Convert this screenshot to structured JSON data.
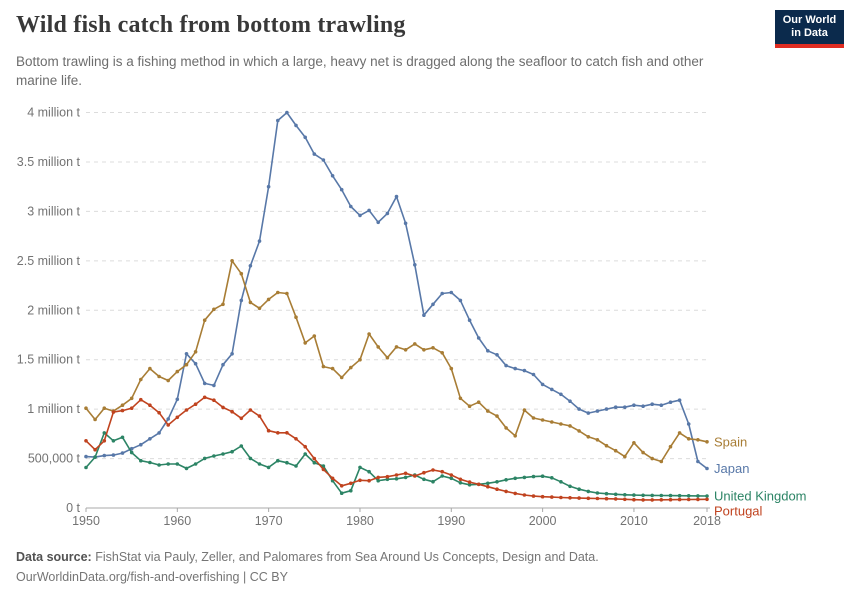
{
  "header": {
    "title": "Wild fish catch from bottom trawling",
    "subtitle": "Bottom trawling is a fishing method in which a large, heavy net is dragged along the seafloor to catch fish and other marine life."
  },
  "logo": {
    "line1": "Our World",
    "line2": "in Data",
    "bg_color": "#0b2a4c",
    "accent_color": "#e02c21"
  },
  "chart_data": {
    "type": "line",
    "title": "Wild fish catch from bottom trawling",
    "xlabel": "",
    "ylabel": "",
    "unit": "t",
    "grid": true,
    "legend_position": "right-end-labels",
    "x_ticks": [
      1950,
      1960,
      1970,
      1980,
      1990,
      2000,
      2010,
      2018
    ],
    "y_ticks": [
      {
        "value": 0,
        "label": "0 t"
      },
      {
        "value": 500000,
        "label": "500,000 t"
      },
      {
        "value": 1000000,
        "label": "1 million t"
      },
      {
        "value": 1500000,
        "label": "1.5 million t"
      },
      {
        "value": 2000000,
        "label": "2 million t"
      },
      {
        "value": 2500000,
        "label": "2.5 million t"
      },
      {
        "value": 3000000,
        "label": "3 million t"
      },
      {
        "value": 3500000,
        "label": "3.5 million t"
      },
      {
        "value": 4000000,
        "label": "4 million t"
      }
    ],
    "x_range": [
      1950,
      2018
    ],
    "y_range": [
      0,
      4000000
    ],
    "years": [
      1950,
      1951,
      1952,
      1953,
      1954,
      1955,
      1956,
      1957,
      1958,
      1959,
      1960,
      1961,
      1962,
      1963,
      1964,
      1965,
      1966,
      1967,
      1968,
      1969,
      1970,
      1971,
      1972,
      1973,
      1974,
      1975,
      1976,
      1977,
      1978,
      1979,
      1980,
      1981,
      1982,
      1983,
      1984,
      1985,
      1986,
      1987,
      1988,
      1989,
      1990,
      1991,
      1992,
      1993,
      1994,
      1995,
      1996,
      1997,
      1998,
      1999,
      2000,
      2001,
      2002,
      2003,
      2004,
      2005,
      2006,
      2007,
      2008,
      2009,
      2010,
      2011,
      2012,
      2013,
      2014,
      2015,
      2016,
      2017,
      2018
    ],
    "series": [
      {
        "name": "Japan",
        "color": "#5878a8",
        "values": [
          520000,
          515000,
          530000,
          535000,
          555000,
          600000,
          640000,
          700000,
          760000,
          900000,
          1100000,
          1560000,
          1460000,
          1260000,
          1240000,
          1450000,
          1560000,
          2100000,
          2450000,
          2700000,
          3250000,
          3920000,
          4000000,
          3870000,
          3750000,
          3580000,
          3520000,
          3360000,
          3220000,
          3050000,
          2960000,
          3010000,
          2890000,
          2980000,
          3150000,
          2880000,
          2460000,
          1950000,
          2060000,
          2170000,
          2180000,
          2100000,
          1900000,
          1720000,
          1590000,
          1550000,
          1440000,
          1410000,
          1390000,
          1350000,
          1250000,
          1200000,
          1150000,
          1080000,
          1000000,
          960000,
          980000,
          1000000,
          1020000,
          1020000,
          1040000,
          1030000,
          1050000,
          1040000,
          1070000,
          1090000,
          850000,
          470000,
          400000
        ]
      },
      {
        "name": "Spain",
        "color": "#a87d35",
        "values": [
          1010000,
          895000,
          1010000,
          980000,
          1040000,
          1110000,
          1300000,
          1410000,
          1330000,
          1290000,
          1380000,
          1450000,
          1580000,
          1900000,
          2010000,
          2060000,
          2500000,
          2370000,
          2080000,
          2020000,
          2110000,
          2180000,
          2170000,
          1930000,
          1670000,
          1740000,
          1430000,
          1410000,
          1320000,
          1420000,
          1500000,
          1760000,
          1630000,
          1520000,
          1630000,
          1600000,
          1660000,
          1600000,
          1620000,
          1570000,
          1410000,
          1110000,
          1030000,
          1070000,
          980000,
          930000,
          810000,
          730000,
          990000,
          910000,
          890000,
          870000,
          850000,
          830000,
          780000,
          720000,
          690000,
          630000,
          580000,
          520000,
          660000,
          560000,
          500000,
          470000,
          620000,
          760000,
          700000,
          690000,
          670000
        ]
      },
      {
        "name": "United Kingdom",
        "color": "#2c8465",
        "values": [
          410000,
          515000,
          760000,
          680000,
          715000,
          560000,
          478000,
          460000,
          435000,
          445000,
          445000,
          401000,
          445000,
          502000,
          526000,
          546000,
          569000,
          627000,
          502000,
          445000,
          411000,
          478000,
          458000,
          425000,
          546000,
          458000,
          425000,
          276000,
          150000,
          175000,
          411000,
          367000,
          276000,
          290000,
          295000,
          310000,
          334000,
          290000,
          266000,
          324000,
          300000,
          255000,
          235000,
          240000,
          250000,
          265000,
          285000,
          300000,
          310000,
          318000,
          322000,
          305000,
          265000,
          220000,
          190000,
          168000,
          152000,
          145000,
          139000,
          134000,
          130000,
          128000,
          127000,
          126000,
          125000,
          124000,
          123000,
          122000,
          121000
        ]
      },
      {
        "name": "Portugal",
        "color": "#c0431f",
        "values": [
          680000,
          590000,
          680000,
          970000,
          985000,
          1010000,
          1095000,
          1040000,
          964000,
          840000,
          917000,
          991000,
          1050000,
          1120000,
          1090000,
          1018000,
          974000,
          907000,
          991000,
          930000,
          782000,
          761000,
          761000,
          700000,
          620000,
          500000,
          390000,
          300000,
          225000,
          250000,
          280000,
          276000,
          310000,
          317000,
          334000,
          351000,
          324000,
          357000,
          384000,
          367000,
          334000,
          290000,
          262000,
          240000,
          215000,
          190000,
          168000,
          148000,
          132000,
          120000,
          114000,
          110000,
          106000,
          103000,
          100000,
          98000,
          96000,
          94000,
          92000,
          88000,
          84000,
          82000,
          82000,
          83000,
          84000,
          85000,
          86000,
          87000,
          88000
        ]
      }
    ]
  },
  "footer": {
    "source_label": "Data source:",
    "source_text": "FishStat via Pauly, Zeller, and Palomares from Sea Around Us Concepts, Design and Data.",
    "link": "OurWorldinData.org/fish-and-overfishing",
    "separator": "|",
    "license": "CC BY"
  }
}
